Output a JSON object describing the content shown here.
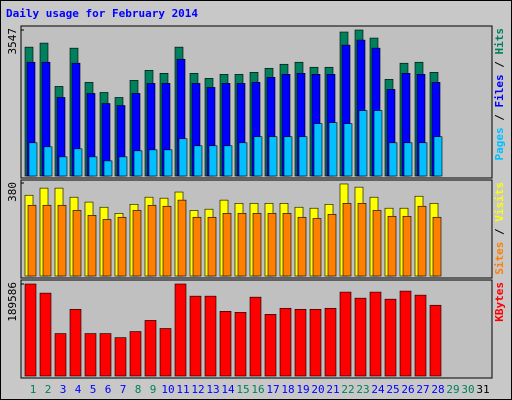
{
  "title": "Daily usage for February 2014",
  "chart_data": [
    {
      "type": "bar",
      "ylim": [
        0,
        3547
      ],
      "yticks": [
        3547
      ],
      "legend_separator": " / ",
      "series": [
        {
          "name": "Hits",
          "color": "#00805c",
          "values": [
            3131,
            3229,
            2177,
            3106,
            2275,
            2030,
            1908,
            2324,
            2568,
            2495,
            3131,
            2495,
            2373,
            2470,
            2470,
            2519,
            2617,
            2715,
            2764,
            2642,
            2642,
            3498,
            3547,
            3351,
            2348,
            2740,
            2764,
            2519,
            null,
            null,
            null
          ]
        },
        {
          "name": "Files",
          "color": "#0000ff",
          "values": [
            2764,
            2764,
            1908,
            2740,
            2006,
            1761,
            1712,
            2006,
            2250,
            2250,
            2837,
            2250,
            2152,
            2250,
            2250,
            2275,
            2397,
            2470,
            2495,
            2470,
            2470,
            3180,
            3302,
            3106,
            2104,
            2495,
            2470,
            2275,
            null,
            null,
            null
          ]
        },
        {
          "name": "Pages",
          "color": "#00c0ff",
          "values": [
            807,
            709,
            465,
            660,
            465,
            367,
            465,
            612,
            636,
            636,
            905,
            734,
            734,
            734,
            807,
            954,
            954,
            954,
            954,
            1272,
            1296,
            1272,
            1590,
            1590,
            807,
            807,
            807,
            954,
            null,
            null,
            null
          ]
        }
      ]
    },
    {
      "type": "bar",
      "ylim": [
        0,
        380
      ],
      "yticks": [
        380
      ],
      "legend_separator": " / ",
      "series": [
        {
          "name": "Visits",
          "color": "#ffff00",
          "values": [
            330,
            359,
            359,
            322,
            302,
            281,
            256,
            293,
            322,
            318,
            343,
            268,
            273,
            310,
            297,
            297,
            297,
            297,
            281,
            277,
            293,
            376,
            363,
            322,
            277,
            277,
            326,
            297,
            null,
            null,
            null
          ]
        },
        {
          "name": "Sites",
          "color": "#ff8000",
          "values": [
            289,
            289,
            289,
            268,
            248,
            231,
            240,
            268,
            289,
            285,
            310,
            240,
            240,
            256,
            256,
            256,
            256,
            256,
            240,
            235,
            252,
            297,
            297,
            268,
            244,
            244,
            285,
            240,
            null,
            null,
            null
          ]
        }
      ]
    },
    {
      "type": "bar",
      "ylim": [
        0,
        189586
      ],
      "yticks": [
        189586
      ],
      "categories": [
        "1",
        "2",
        "3",
        "4",
        "5",
        "6",
        "7",
        "8",
        "9",
        "10",
        "11",
        "12",
        "13",
        "14",
        "15",
        "16",
        "17",
        "18",
        "19",
        "20",
        "21",
        "22",
        "23",
        "24",
        "25",
        "26",
        "27",
        "28",
        "29",
        "30",
        "31"
      ],
      "category_colors": [
        "#00805c",
        "#00805c",
        "#0000ff",
        "#0000ff",
        "#0000ff",
        "#0000ff",
        "#0000ff",
        "#00805c",
        "#00805c",
        "#0000ff",
        "#0000ff",
        "#0000ff",
        "#0000ff",
        "#0000ff",
        "#00805c",
        "#00805c",
        "#0000ff",
        "#0000ff",
        "#0000ff",
        "#0000ff",
        "#0000ff",
        "#00805c",
        "#00805c",
        "#0000ff",
        "#0000ff",
        "#0000ff",
        "#0000ff",
        "#0000ff",
        "#00805c",
        "#00805c",
        "#000000"
      ],
      "series": [
        {
          "name": "KBytes",
          "color": "#ff0000",
          "values": [
            189586,
            170800,
            87490,
            137480,
            87490,
            87490,
            79150,
            91650,
            114570,
            97900,
            189586,
            164560,
            164560,
            133310,
            131230,
            162470,
            127060,
            139560,
            137480,
            137480,
            139560,
            172890,
            160390,
            172890,
            158310,
            174970,
            166640,
            145810,
            null,
            null,
            null
          ]
        }
      ]
    }
  ]
}
